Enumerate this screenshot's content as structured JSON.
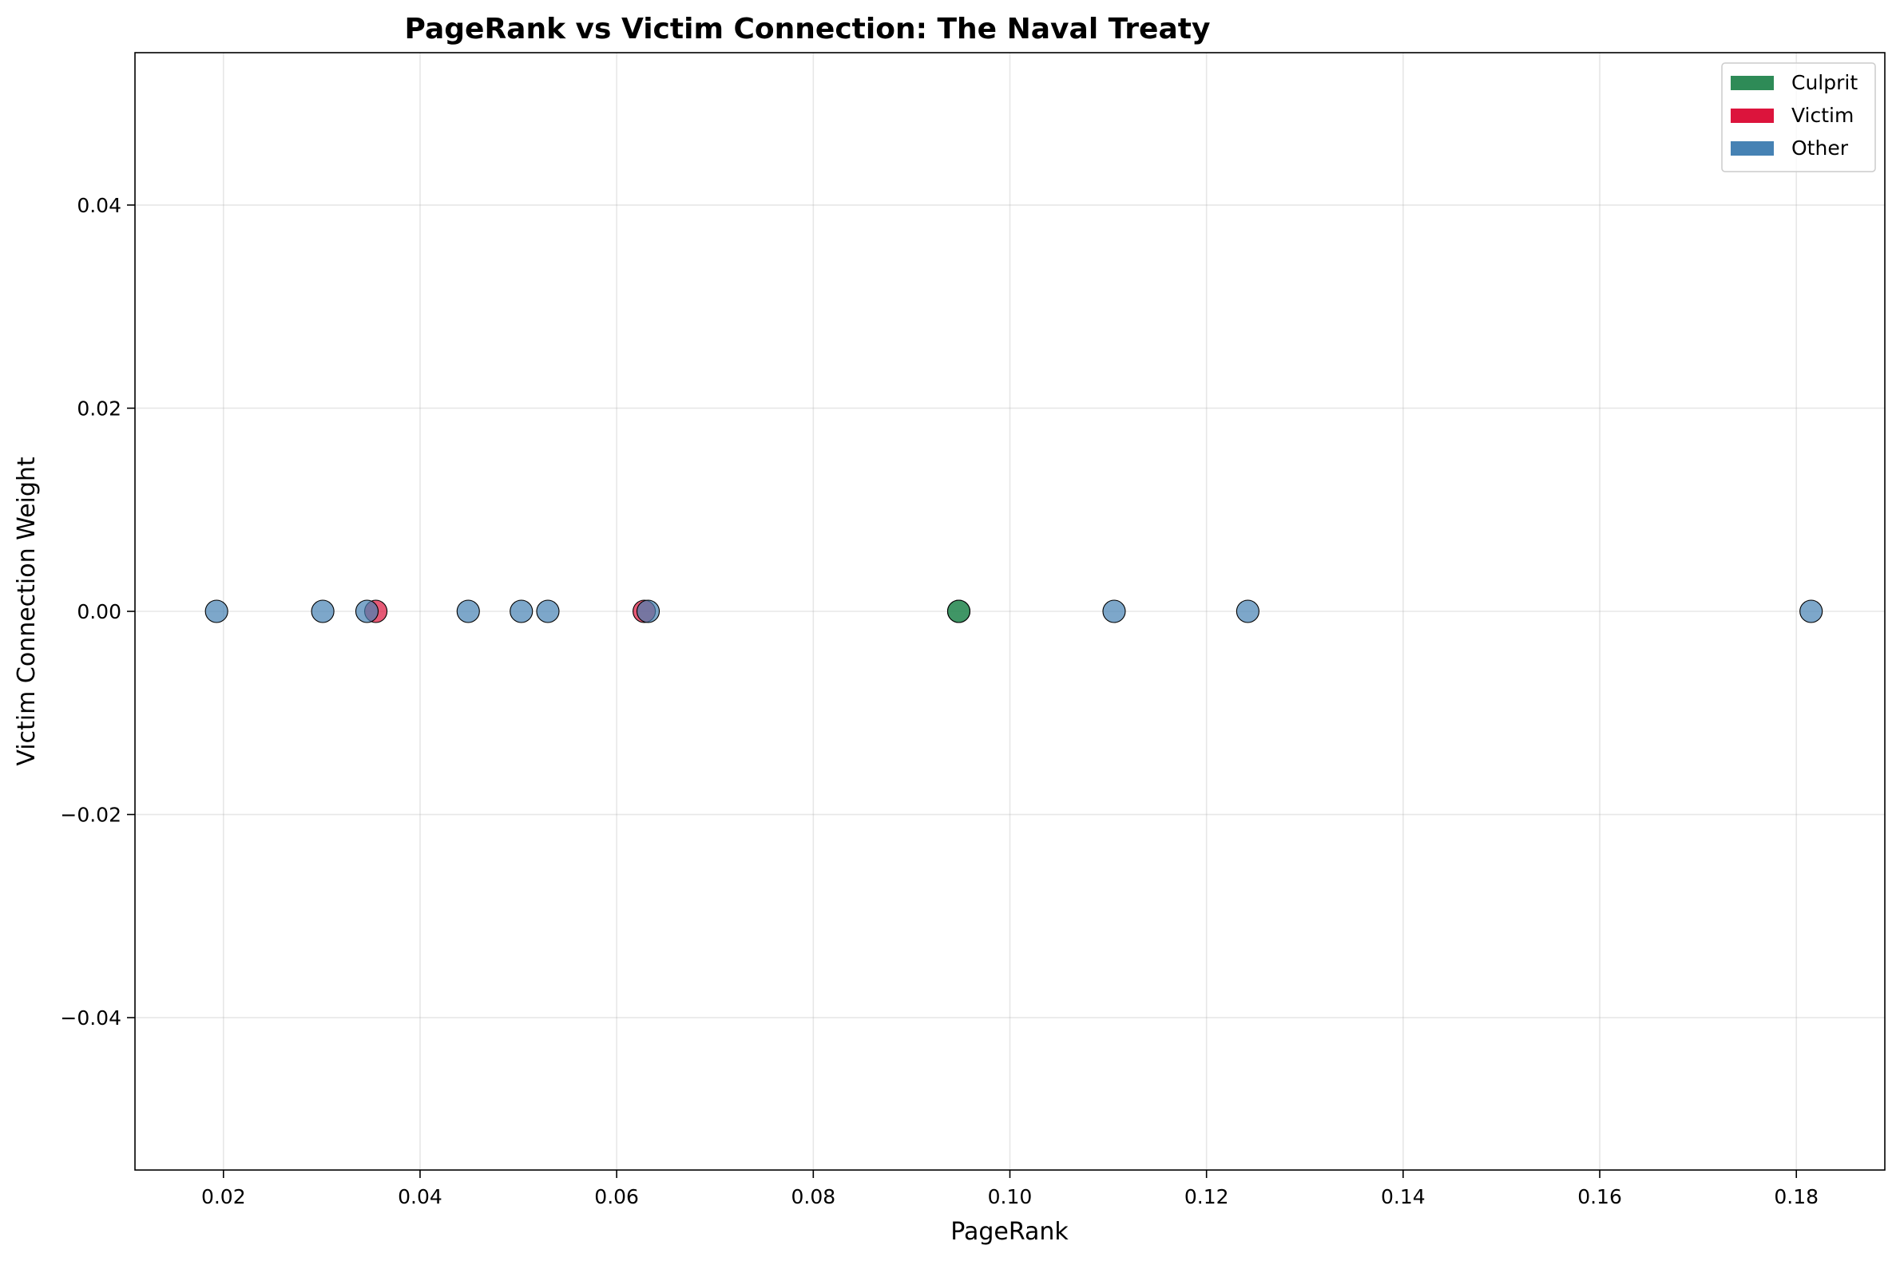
{
  "chart_data": {
    "type": "scatter",
    "title": "PageRank vs Victim Connection: The Naval Treaty",
    "xlabel": "PageRank",
    "ylabel": "Victim Connection Weight",
    "xlim": [
      0.011,
      0.189
    ],
    "ylim": [
      -0.055,
      0.055
    ],
    "x_ticks": [
      0.02,
      0.04,
      0.06,
      0.08,
      0.1,
      0.12,
      0.14,
      0.16,
      0.18
    ],
    "x_tick_labels": [
      "0.02",
      "0.04",
      "0.06",
      "0.08",
      "0.10",
      "0.12",
      "0.14",
      "0.16",
      "0.18"
    ],
    "y_ticks": [
      -0.04,
      -0.02,
      0.0,
      0.02,
      0.04
    ],
    "y_tick_labels": [
      "−0.04",
      "−0.02",
      "0.00",
      "0.02",
      "0.04"
    ],
    "grid": true,
    "legend_position": "top-right",
    "series": [
      {
        "name": "Culprit",
        "color": "#2e8b57",
        "points": [
          {
            "x": 0.0948,
            "y": 0.0
          },
          {
            "x": 0.0948,
            "y": 0.0
          }
        ]
      },
      {
        "name": "Victim",
        "color": "#dc143c",
        "points": [
          {
            "x": 0.0355,
            "y": 0.0
          },
          {
            "x": 0.0628,
            "y": 0.0
          }
        ]
      },
      {
        "name": "Other",
        "color": "#4682b4",
        "points": [
          {
            "x": 0.0193,
            "y": 0.0
          },
          {
            "x": 0.0301,
            "y": 0.0
          },
          {
            "x": 0.0346,
            "y": 0.0
          },
          {
            "x": 0.0449,
            "y": 0.0
          },
          {
            "x": 0.0503,
            "y": 0.0
          },
          {
            "x": 0.053,
            "y": 0.0
          },
          {
            "x": 0.0632,
            "y": 0.0
          },
          {
            "x": 0.1106,
            "y": 0.0
          },
          {
            "x": 0.1242,
            "y": 0.0
          },
          {
            "x": 0.1815,
            "y": 0.0
          }
        ]
      }
    ]
  }
}
